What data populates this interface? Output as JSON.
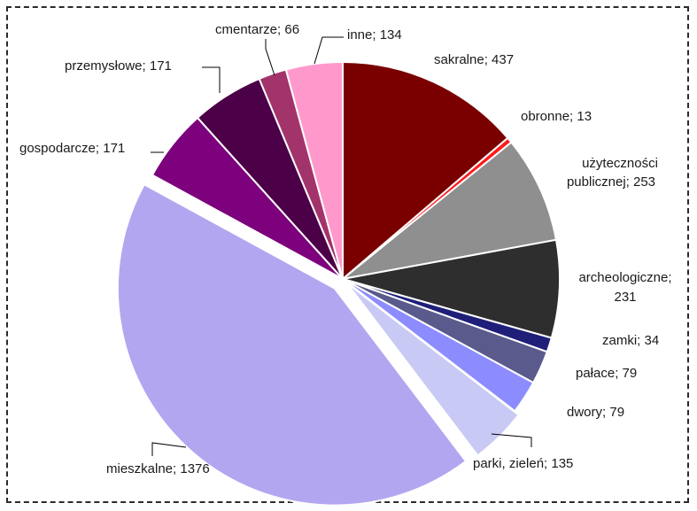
{
  "chart_data": {
    "type": "pie",
    "title": "",
    "slices": [
      {
        "label": "sakralne; 437",
        "name": "sakralne",
        "value": 437,
        "color": "#7a0000"
      },
      {
        "label": "obronne; 13",
        "name": "obronne",
        "value": 13,
        "color": "#ff1a1a"
      },
      {
        "label": "użyteczności publicznej; 253",
        "name": "użyteczności publicznej",
        "value": 253,
        "color": "#8f8f8f"
      },
      {
        "label": "archeologiczne; 231",
        "name": "archeologiczne",
        "value": 231,
        "color": "#2e2e2e"
      },
      {
        "label": "zamki; 34",
        "name": "zamki",
        "value": 34,
        "color": "#1f1f7a"
      },
      {
        "label": "pałace; 79",
        "name": "pałace",
        "value": 79,
        "color": "#5a5a8c"
      },
      {
        "label": "dwory; 79",
        "name": "dwory",
        "value": 79,
        "color": "#8c8cff"
      },
      {
        "label": "parki, zieleń; 135",
        "name": "parki, zieleń",
        "value": 135,
        "color": "#c9c9f5"
      },
      {
        "label": "mieszkalne; 1376",
        "name": "mieszkalne",
        "value": 1376,
        "color": "#b3a6f0"
      },
      {
        "label": "gospodarcze; 171",
        "name": "gospodarcze",
        "value": 171,
        "color": "#7d007d"
      },
      {
        "label": "przemysłowe; 171",
        "name": "przemysłowe",
        "value": 171,
        "color": "#4b0048"
      },
      {
        "label": "cmentarze; 66",
        "name": "cmentarze",
        "value": 66,
        "color": "#a3336b"
      },
      {
        "label": "inne; 134",
        "name": "inne",
        "value": 134,
        "color": "#ff99cc"
      }
    ],
    "legend": "none"
  }
}
